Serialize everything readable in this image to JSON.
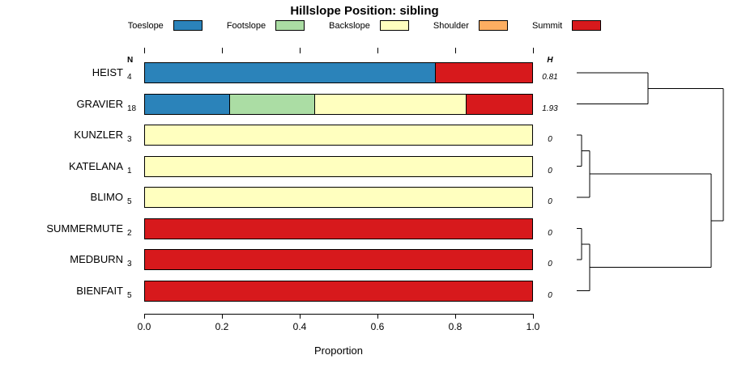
{
  "title": "Hillslope Position: sibling",
  "legend": {
    "items": [
      {
        "label": "Toeslope",
        "color": "#2B83BA"
      },
      {
        "label": "Footslope",
        "color": "#ABDDA4"
      },
      {
        "label": "Backslope",
        "color": "#FFFFBF"
      },
      {
        "label": "Shoulder",
        "color": "#FDAE61"
      },
      {
        "label": "Summit",
        "color": "#D7191C"
      }
    ]
  },
  "headers": {
    "n": "N",
    "h": "H"
  },
  "axis": {
    "xlabel": "Proportion",
    "tick_labels": [
      "0.0",
      "0.2",
      "0.4",
      "0.6",
      "0.8",
      "1.0"
    ],
    "tick_values": [
      0,
      0.2,
      0.4,
      0.6,
      0.8,
      1.0
    ]
  },
  "chart_data": {
    "type": "bar",
    "subtype": "horizontal-stacked-proportion",
    "title": "Hillslope Position: sibling",
    "xlabel": "Proportion",
    "xlim": [
      0,
      1
    ],
    "legend_position": "top",
    "categories": [
      "HEIST",
      "GRAVIER",
      "KUNZLER",
      "KATELANA",
      "BLIMO",
      "SUMMERMUTE",
      "MEDBURN",
      "BIENFAIT"
    ],
    "series": [
      {
        "name": "Toeslope",
        "values": [
          0.75,
          0.22,
          0,
          0,
          0,
          0,
          0,
          0
        ]
      },
      {
        "name": "Footslope",
        "values": [
          0,
          0.22,
          0,
          0,
          0,
          0,
          0,
          0
        ]
      },
      {
        "name": "Backslope",
        "values": [
          0,
          0.39,
          1,
          1,
          1,
          0,
          0,
          0
        ]
      },
      {
        "name": "Shoulder",
        "values": [
          0,
          0,
          0,
          0,
          0,
          0,
          0,
          0
        ]
      },
      {
        "name": "Summit",
        "values": [
          0.25,
          0.17,
          0,
          0,
          0,
          1,
          1,
          1
        ]
      }
    ],
    "rows": [
      {
        "label": "HEIST",
        "n": "4",
        "h": "0.81",
        "segments": [
          {
            "name": "Toeslope",
            "value": 0.75
          },
          {
            "name": "Summit",
            "value": 0.25
          }
        ]
      },
      {
        "label": "GRAVIER",
        "n": "18",
        "h": "1.93",
        "segments": [
          {
            "name": "Toeslope",
            "value": 0.22
          },
          {
            "name": "Footslope",
            "value": 0.22
          },
          {
            "name": "Backslope",
            "value": 0.39
          },
          {
            "name": "Summit",
            "value": 0.17
          }
        ]
      },
      {
        "label": "KUNZLER",
        "n": "3",
        "h": "0",
        "segments": [
          {
            "name": "Backslope",
            "value": 1
          }
        ]
      },
      {
        "label": "KATELANA",
        "n": "1",
        "h": "0",
        "segments": [
          {
            "name": "Backslope",
            "value": 1
          }
        ]
      },
      {
        "label": "BLIMO",
        "n": "5",
        "h": "0",
        "segments": [
          {
            "name": "Backslope",
            "value": 1
          }
        ]
      },
      {
        "label": "SUMMERMUTE",
        "n": "2",
        "h": "0",
        "segments": [
          {
            "name": "Summit",
            "value": 1
          }
        ]
      },
      {
        "label": "MEDBURN",
        "n": "3",
        "h": "0",
        "segments": [
          {
            "name": "Summit",
            "value": 1
          }
        ]
      },
      {
        "label": "BIENFAIT",
        "n": "5",
        "h": "0",
        "segments": [
          {
            "name": "Summit",
            "value": 1
          }
        ]
      }
    ],
    "dendrogram": {
      "note": "segments as [height1,row1,height2,row2]; height 0=leaf,1=root; row = category index",
      "segments": [
        [
          0,
          0,
          0.486,
          0
        ],
        [
          0,
          1,
          0.486,
          1
        ],
        [
          0.486,
          0,
          0.486,
          1
        ],
        [
          0.486,
          0.5,
          1,
          0.5
        ],
        [
          0,
          2,
          0.033,
          2
        ],
        [
          0,
          3,
          0.033,
          3
        ],
        [
          0.033,
          2,
          0.033,
          3
        ],
        [
          0.033,
          2.5,
          0.088,
          2.5
        ],
        [
          0,
          4,
          0.088,
          4
        ],
        [
          0.088,
          2.5,
          0.088,
          4
        ],
        [
          0.088,
          3.25,
          0.917,
          3.25
        ],
        [
          0,
          5,
          0.033,
          5
        ],
        [
          0,
          6,
          0.033,
          6
        ],
        [
          0.033,
          5,
          0.033,
          6
        ],
        [
          0.033,
          5.5,
          0.088,
          5.5
        ],
        [
          0,
          7,
          0.088,
          7
        ],
        [
          0.088,
          5.5,
          0.088,
          7
        ],
        [
          0.088,
          6.25,
          0.917,
          6.25
        ],
        [
          0.917,
          3.25,
          0.917,
          6.25
        ],
        [
          0.917,
          4.75,
          1,
          4.75
        ],
        [
          1,
          0.5,
          1,
          4.75
        ]
      ]
    }
  }
}
